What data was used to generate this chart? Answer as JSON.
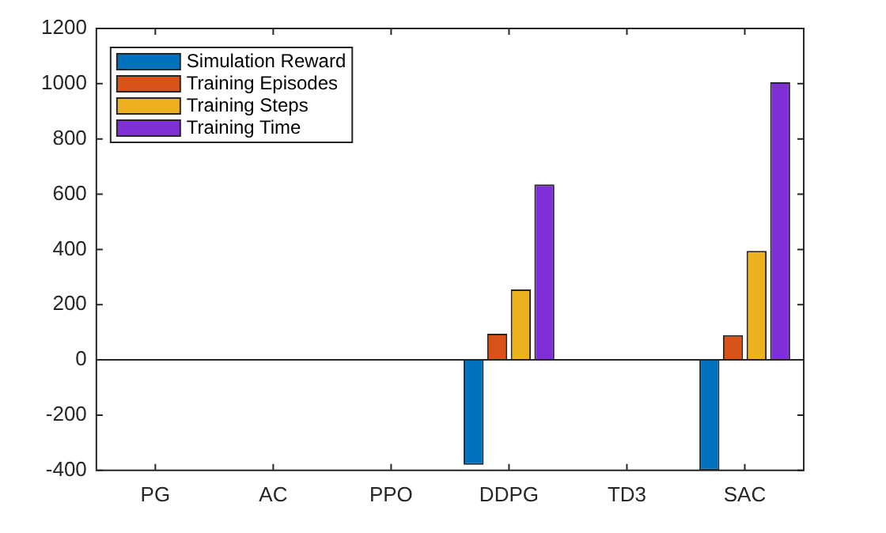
{
  "chart_data": {
    "type": "bar",
    "categories": [
      "PG",
      "AC",
      "PPO",
      "DDPG",
      "TD3",
      "SAC"
    ],
    "series": [
      {
        "name": "Simulation Reward",
        "color": "#0072bd",
        "values": [
          0,
          0,
          0,
          -380,
          0,
          -400
        ]
      },
      {
        "name": "Training Episodes",
        "color": "#d95319",
        "values": [
          0,
          0,
          0,
          95,
          0,
          90
        ]
      },
      {
        "name": "Training Steps",
        "color": "#edb120",
        "values": [
          0,
          0,
          0,
          255,
          0,
          395
        ]
      },
      {
        "name": "Training Time",
        "color": "#7e2fd5",
        "values": [
          0,
          0,
          0,
          635,
          0,
          1005
        ]
      }
    ],
    "ylim": [
      -400,
      1200
    ],
    "yticks": [
      -400,
      -200,
      0,
      200,
      400,
      600,
      800,
      1000,
      1200
    ],
    "grid": false,
    "legend": "top left",
    "ref_lines": [
      {
        "axis": "y",
        "value": 0,
        "color": "#262626"
      }
    ]
  }
}
